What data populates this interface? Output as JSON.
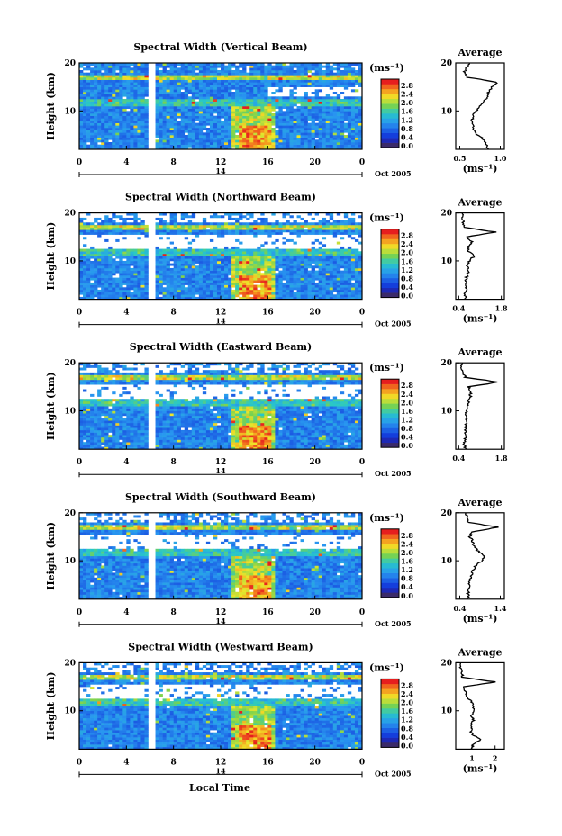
{
  "chart_data": {
    "type": "heatmap",
    "xlabel": "Local Time",
    "x_ticks": [
      "0",
      "4",
      "8",
      "12",
      "16",
      "20",
      "0"
    ],
    "date_label": "Oct 2005",
    "day_label": "14",
    "ylabel": "Height (km)",
    "y_ticks": [
      "20",
      "10"
    ],
    "ylim": [
      2,
      20
    ],
    "xlim": [
      0,
      24
    ],
    "colorbar": {
      "unit": "(ms⁻¹)",
      "ticks": [
        "2.8",
        "2.4",
        "2.0",
        "1.6",
        "1.2",
        "0.8",
        "0.4",
        "0.0"
      ],
      "range": [
        0.0,
        2.8
      ]
    },
    "panels": [
      {
        "title": "Spectral Width (Vertical Beam)",
        "profile_title": "Average",
        "profile_xticks": [
          "0.5",
          "1.0"
        ],
        "profile_xlim": [
          0.45,
          1.05
        ],
        "profile_xlabel": "(ms⁻¹)",
        "profile": [
          [
            2,
            0.86
          ],
          [
            3,
            0.82
          ],
          [
            4,
            0.8
          ],
          [
            5,
            0.72
          ],
          [
            6,
            0.68
          ],
          [
            7,
            0.66
          ],
          [
            8,
            0.65
          ],
          [
            9,
            0.66
          ],
          [
            10,
            0.7
          ],
          [
            11,
            0.74
          ],
          [
            12,
            0.8
          ],
          [
            13,
            0.84
          ],
          [
            14,
            0.86
          ],
          [
            15,
            0.9
          ],
          [
            16,
            0.96
          ],
          [
            17,
            0.6
          ],
          [
            18,
            0.55
          ],
          [
            19,
            0.58
          ],
          [
            20,
            0.62
          ]
        ]
      },
      {
        "title": "Spectral Width (Northward Beam)",
        "profile_title": "Average",
        "profile_xticks": [
          "0.4",
          "1.8"
        ],
        "profile_xlim": [
          0.3,
          1.9
        ],
        "profile_xlabel": "(ms⁻¹)",
        "profile": [
          [
            2,
            0.62
          ],
          [
            3,
            0.6
          ],
          [
            4,
            0.64
          ],
          [
            5,
            0.66
          ],
          [
            6,
            0.62
          ],
          [
            7,
            0.68
          ],
          [
            8,
            0.72
          ],
          [
            9,
            0.66
          ],
          [
            10,
            0.75
          ],
          [
            11,
            0.9
          ],
          [
            12,
            0.72
          ],
          [
            13,
            0.7
          ],
          [
            14,
            0.85
          ],
          [
            15,
            0.65
          ],
          [
            16,
            1.6
          ],
          [
            17,
            0.6
          ],
          [
            18,
            0.55
          ],
          [
            19,
            0.5
          ],
          [
            20,
            0.52
          ]
        ]
      },
      {
        "title": "Spectral Width (Eastward Beam)",
        "profile_title": "Average",
        "profile_xticks": [
          "0.4",
          "1.8"
        ],
        "profile_xlim": [
          0.3,
          1.9
        ],
        "profile_xlabel": "",
        "profile": [
          [
            2,
            0.62
          ],
          [
            3,
            0.58
          ],
          [
            4,
            0.6
          ],
          [
            5,
            0.62
          ],
          [
            6,
            0.6
          ],
          [
            7,
            0.62
          ],
          [
            8,
            0.65
          ],
          [
            9,
            0.62
          ],
          [
            10,
            0.66
          ],
          [
            11,
            0.7
          ],
          [
            12,
            0.72
          ],
          [
            13,
            0.78
          ],
          [
            14,
            0.8
          ],
          [
            15,
            0.72
          ],
          [
            16,
            1.7
          ],
          [
            17,
            0.62
          ],
          [
            18,
            0.55
          ],
          [
            19,
            0.5
          ],
          [
            20,
            0.52
          ]
        ]
      },
      {
        "title": "Spectral Width (Southward Beam)",
        "profile_title": "Average",
        "profile_xticks": [
          "0.4",
          "1.4"
        ],
        "profile_xlim": [
          0.3,
          1.5
        ],
        "profile_xlabel": "(ms⁻¹)",
        "profile": [
          [
            2,
            0.62
          ],
          [
            3,
            0.6
          ],
          [
            4,
            0.62
          ],
          [
            5,
            0.64
          ],
          [
            6,
            0.66
          ],
          [
            7,
            0.7
          ],
          [
            8,
            0.72
          ],
          [
            9,
            0.8
          ],
          [
            10,
            0.95
          ],
          [
            11,
            1.0
          ],
          [
            12,
            0.85
          ],
          [
            13,
            0.75
          ],
          [
            14,
            0.72
          ],
          [
            15,
            0.65
          ],
          [
            16,
            0.7
          ],
          [
            17,
            1.35
          ],
          [
            18,
            0.62
          ],
          [
            19,
            0.58
          ],
          [
            20,
            0.55
          ]
        ]
      },
      {
        "title": "Spectral Width (Westward Beam)",
        "profile_title": "Average",
        "profile_xticks": [
          "1",
          "2"
        ],
        "profile_xlim": [
          0.3,
          2.4
        ],
        "profile_xlabel": "(ms⁻¹)",
        "profile": [
          [
            2,
            1.0
          ],
          [
            3,
            1.05
          ],
          [
            4,
            1.4
          ],
          [
            5,
            1.0
          ],
          [
            6,
            0.95
          ],
          [
            7,
            1.0
          ],
          [
            8,
            1.05
          ],
          [
            9,
            0.98
          ],
          [
            10,
            1.1
          ],
          [
            11,
            1.05
          ],
          [
            12,
            0.95
          ],
          [
            13,
            0.75
          ],
          [
            14,
            0.7
          ],
          [
            15,
            0.65
          ],
          [
            16,
            2.0
          ],
          [
            17,
            0.6
          ],
          [
            18,
            0.55
          ],
          [
            19,
            0.5
          ],
          [
            20,
            0.5
          ]
        ]
      }
    ]
  }
}
